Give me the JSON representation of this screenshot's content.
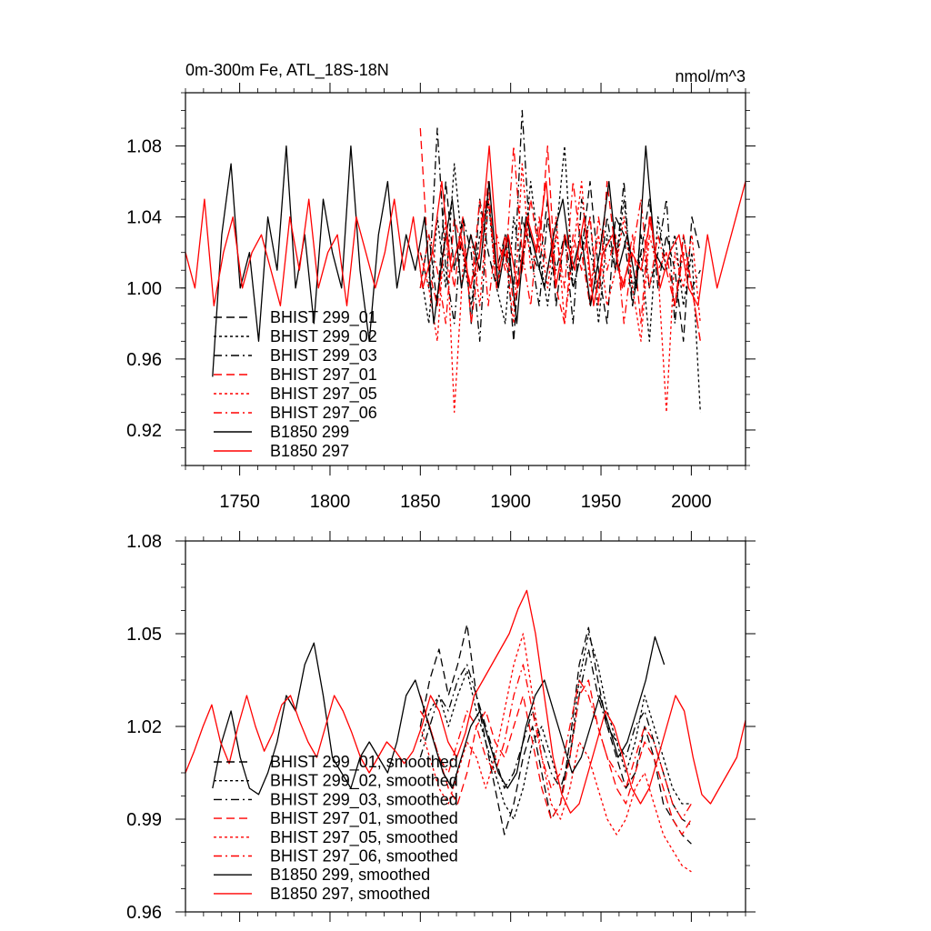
{
  "chart_data": [
    {
      "type": "line",
      "title": "0m-300m Fe, ATL_18S-18N",
      "units": "nmol/m^3",
      "xlabel": "",
      "ylabel": "",
      "xlim": [
        1720,
        2030
      ],
      "ylim": [
        0.9,
        1.11
      ],
      "xticks": [
        1750,
        1800,
        1850,
        1900,
        1950,
        2000
      ],
      "xtick_labels": [
        "1750",
        "1800",
        "1850",
        "1900",
        "1950",
        "2000"
      ],
      "yticks": [
        0.92,
        0.96,
        1.0,
        1.04,
        1.08
      ],
      "ytick_labels": [
        "0.92",
        "0.96",
        "1.00",
        "1.04",
        "1.08"
      ],
      "legend_position": "lower-left",
      "series": [
        {
          "name": "BHIST 299_01",
          "color": "#000000",
          "dash": "dash",
          "x_start": 1850,
          "x_end": 2005,
          "values": [
            1.0,
            1.03,
            0.99,
            1.06,
            1.01,
            1.04,
            0.98,
            1.05,
            1.02,
            1.0,
            1.03,
            0.97,
            1.04,
            1.02,
            1.01,
            1.05,
            0.99,
            1.03,
            1.0,
            1.02,
            1.06,
            1.01,
            0.98,
            1.04,
            1.03,
            0.99,
            1.02,
            1.05,
            1.0,
            1.03,
            1.01,
            0.97,
            1.04,
            1.02
          ]
        },
        {
          "name": "BHIST 299_02",
          "color": "#000000",
          "dash": "dot",
          "x_start": 1850,
          "x_end": 2005,
          "values": [
            1.01,
            0.98,
            1.04,
            1.0,
            1.07,
            1.02,
            0.99,
            1.03,
            1.05,
            1.0,
            0.98,
            1.04,
            1.01,
            1.06,
            1.02,
            0.99,
            1.03,
            1.08,
            1.0,
            1.02,
            1.04,
            0.98,
            1.03,
            1.01,
            1.05,
            1.0,
            1.02,
            0.97,
            1.04,
            1.01,
            1.03,
            0.99,
            1.02,
            0.93
          ]
        },
        {
          "name": "BHIST 299_03",
          "color": "#000000",
          "dash": "dashdot",
          "x_start": 1850,
          "x_end": 2005,
          "values": [
            1.02,
            1.0,
            1.09,
            1.01,
            0.98,
            1.04,
            1.02,
            0.97,
            1.05,
            1.01,
            1.03,
            1.0,
            1.1,
            1.02,
            0.99,
            1.04,
            1.01,
            1.03,
            0.98,
            1.05,
            1.02,
            1.0,
            1.04,
            1.01,
            1.06,
            0.99,
            1.03,
            1.0,
            1.02,
            1.05,
            0.98,
            1.03,
            1.0,
            1.01
          ]
        },
        {
          "name": "BHIST 297_01",
          "color": "#ff0000",
          "dash": "dash",
          "x_start": 1850,
          "x_end": 2005,
          "values": [
            1.09,
            1.01,
            0.99,
            1.03,
            1.0,
            1.04,
            0.98,
            1.02,
            1.06,
            1.0,
            1.03,
            0.99,
            1.01,
            1.05,
            1.02,
            1.08,
            1.0,
            0.98,
            1.03,
            1.01,
            1.04,
            0.99,
            1.06,
            1.02,
            1.0,
            1.03,
            0.98,
            1.04,
            1.01,
            1.02,
            0.99,
            1.03,
            1.0,
            0.97
          ]
        },
        {
          "name": "BHIST 297_05",
          "color": "#ff0000",
          "dash": "dot",
          "x_start": 1850,
          "x_end": 2005,
          "values": [
            1.02,
            1.0,
            0.97,
            1.04,
            0.93,
            1.01,
            1.03,
            0.99,
            1.05,
            1.0,
            1.02,
            0.98,
            1.07,
            1.01,
            1.03,
            1.0,
            1.04,
            0.98,
            1.02,
            1.06,
            1.0,
            1.03,
            0.99,
            1.01,
            1.04,
            1.0,
            0.97,
            1.03,
            1.01,
            0.93,
            1.02,
            1.0,
            1.03,
            0.98
          ]
        },
        {
          "name": "BHIST 297_06",
          "color": "#ff0000",
          "dash": "dashdot",
          "x_start": 1850,
          "x_end": 2005,
          "values": [
            1.0,
            1.03,
            1.01,
            0.98,
            1.04,
            1.02,
            1.0,
            1.05,
            0.99,
            1.03,
            1.01,
            1.08,
            1.02,
            0.99,
            1.04,
            1.01,
            1.03,
            1.0,
            1.06,
            1.02,
            0.99,
            1.04,
            1.01,
            1.03,
            0.98,
            1.02,
            1.05,
            1.0,
            1.03,
            1.01,
            0.99,
            1.02,
            1.0,
            0.97
          ]
        },
        {
          "name": "B1850 299",
          "color": "#000000",
          "dash": "solid",
          "x_start": 1735,
          "x_end": 1985,
          "values": [
            0.95,
            1.03,
            1.07,
            1.0,
            1.02,
            0.97,
            1.04,
            1.01,
            1.08,
            1.0,
            1.03,
            0.98,
            1.05,
            1.02,
            1.0,
            1.08,
            1.01,
            0.97,
            1.03,
            1.06,
            1.0,
            1.03,
            1.01,
            1.04,
            0.98,
            1.02,
            1.05,
            1.0,
            1.03,
            1.01,
            1.06,
            1.0,
            1.03,
            0.98,
            1.04,
            1.02,
            1.0,
            1.03,
            1.05,
            1.01,
            1.03,
            0.99,
            1.02,
            1.06,
            1.01,
            1.03,
            1.0,
            1.08,
            1.02,
            1.01
          ]
        },
        {
          "name": "B1850 297",
          "color": "#ff0000",
          "dash": "solid",
          "x_start": 1720,
          "x_end": 2030,
          "values": [
            1.02,
            1.0,
            1.05,
            0.99,
            1.02,
            1.04,
            1.0,
            1.02,
            1.03,
            1.01,
            0.99,
            1.04,
            1.01,
            1.05,
            1.0,
            1.02,
            1.03,
            0.99,
            1.04,
            1.02,
            1.0,
            1.02,
            1.05,
            1.01,
            1.04,
            1.0,
            1.02,
            1.06,
            1.01,
            1.03,
            1.0,
            1.02,
            1.08,
            1.01,
            1.03,
            1.0,
            1.04,
            1.02,
            1.06,
            1.0,
            1.03,
            1.01,
            1.04,
            0.99,
            1.02,
            1.03,
            1.0,
            1.02,
            1.01,
            1.04,
            1.0,
            1.02,
            1.03,
            1.0,
            0.99,
            1.03,
            1.0,
            1.02,
            1.04,
            1.06
          ]
        }
      ]
    },
    {
      "type": "line",
      "title": "",
      "xlabel": "",
      "ylabel": "",
      "xlim": [
        1720,
        2030
      ],
      "ylim": [
        0.96,
        1.08
      ],
      "xticks": [
        1750,
        1800,
        1850,
        1900,
        1950,
        2000
      ],
      "yticks": [
        0.96,
        0.99,
        1.02,
        1.05,
        1.08
      ],
      "ytick_labels": [
        "0.96",
        "0.99",
        "1.02",
        "1.05",
        "1.08"
      ],
      "legend_position": "lower-left",
      "series": [
        {
          "name": "BHIST 299_01, smoothed",
          "color": "#000000",
          "dash": "dash",
          "x_start": 1850,
          "x_end": 2000,
          "values": [
            1.02,
            1.035,
            1.045,
            1.03,
            1.04,
            1.053,
            1.03,
            1.015,
            1.0,
            0.985,
            0.995,
            1.01,
            1.02,
            1.005,
            0.99,
            0.995,
            1.015,
            1.04,
            1.052,
            1.035,
            1.02,
            1.01,
            1.0,
            1.005,
            1.02,
            1.01,
            0.995,
            0.99,
            0.985,
            0.982
          ]
        },
        {
          "name": "BHIST 299_02, smoothed",
          "color": "#000000",
          "dash": "dot",
          "x_start": 1850,
          "x_end": 2000,
          "values": [
            1.015,
            1.025,
            1.03,
            1.02,
            1.03,
            1.038,
            1.025,
            1.015,
            1.005,
            0.995,
            0.99,
            1.0,
            1.015,
            1.02,
            1.01,
            1.0,
            1.01,
            1.035,
            1.05,
            1.04,
            1.025,
            1.015,
            1.005,
            1.015,
            1.03,
            1.02,
            1.01,
            1.0,
            0.995,
            0.995
          ]
        },
        {
          "name": "BHIST 299_03, smoothed",
          "color": "#000000",
          "dash": "dashdot",
          "x_start": 1850,
          "x_end": 2000,
          "values": [
            1.01,
            1.02,
            1.03,
            1.025,
            1.035,
            1.04,
            1.03,
            1.02,
            1.01,
            1.0,
            1.005,
            1.015,
            1.025,
            1.015,
            1.005,
            1.0,
            1.01,
            1.03,
            1.045,
            1.03,
            1.02,
            1.015,
            1.01,
            1.02,
            1.025,
            1.015,
            1.005,
            0.995,
            0.99,
            0.988
          ]
        },
        {
          "name": "BHIST 297_01, smoothed",
          "color": "#ff0000",
          "dash": "dash",
          "x_start": 1850,
          "x_end": 2000,
          "values": [
            1.03,
            1.02,
            1.01,
            1.0,
            0.995,
            1.005,
            1.02,
            1.025,
            1.015,
            1.01,
            1.02,
            1.03,
            1.015,
            1.0,
            0.99,
            0.995,
            1.01,
            1.03,
            1.035,
            1.02,
            1.01,
            1.0,
            0.995,
            1.005,
            1.015,
            1.01,
            1.0,
            0.99,
            0.985,
            0.99
          ]
        },
        {
          "name": "BHIST 297_05, smoothed",
          "color": "#ff0000",
          "dash": "dot",
          "x_start": 1850,
          "x_end": 2000,
          "values": [
            1.02,
            1.01,
            1.0,
            0.995,
            1.005,
            1.015,
            1.01,
            1.0,
            1.01,
            1.025,
            1.04,
            1.05,
            1.03,
            1.01,
            0.995,
            0.99,
            1.0,
            1.015,
            1.01,
            1.0,
            0.99,
            0.985,
            0.99,
            1.0,
            1.005,
            0.995,
            0.985,
            0.98,
            0.975,
            0.973
          ]
        },
        {
          "name": "BHIST 297_06, smoothed",
          "color": "#ff0000",
          "dash": "dashdot",
          "x_start": 1850,
          "x_end": 2000,
          "values": [
            1.025,
            1.02,
            1.01,
            1.005,
            1.015,
            1.025,
            1.02,
            1.01,
            1.005,
            1.015,
            1.03,
            1.04,
            1.025,
            1.01,
            1.0,
            1.005,
            1.02,
            1.035,
            1.03,
            1.02,
            1.01,
            1.005,
            1.0,
            1.01,
            1.02,
            1.015,
            1.005,
            0.995,
            0.99,
            0.995
          ]
        },
        {
          "name": "B1850 299, smoothed",
          "color": "#000000",
          "dash": "solid",
          "x_start": 1735,
          "x_end": 1985,
          "values": [
            1.0,
            1.015,
            1.025,
            1.01,
            1.0,
            0.998,
            1.005,
            1.015,
            1.03,
            1.025,
            1.04,
            1.047,
            1.03,
            1.01,
            1.005,
            1.0,
            1.01,
            1.015,
            1.01,
            1.005,
            1.015,
            1.03,
            1.035,
            1.025,
            1.015,
            1.005,
            1.0,
            1.01,
            1.02,
            1.025,
            1.015,
            1.005,
            1.0,
            1.005,
            1.02,
            1.03,
            1.035,
            1.025,
            1.015,
            1.005,
            1.01,
            1.02,
            1.03,
            1.02,
            1.01,
            1.015,
            1.025,
            1.035,
            1.049,
            1.04
          ]
        },
        {
          "name": "B1850 297, smoothed",
          "color": "#ff0000",
          "dash": "solid",
          "x_start": 1720,
          "x_end": 2030,
          "values": [
            1.005,
            1.012,
            1.02,
            1.027,
            1.015,
            1.008,
            1.02,
            1.03,
            1.02,
            1.012,
            1.018,
            1.027,
            1.03,
            1.022,
            1.015,
            1.01,
            1.02,
            1.03,
            1.025,
            1.018,
            1.01,
            1.005,
            1.01,
            1.015,
            1.012,
            1.008,
            1.012,
            1.02,
            1.03,
            1.025,
            1.015,
            1.01,
            1.018,
            1.03,
            1.035,
            1.04,
            1.045,
            1.05,
            1.058,
            1.064,
            1.05,
            1.03,
            1.01,
            0.998,
            0.992,
            0.995,
            1.005,
            1.015,
            1.025,
            1.02,
            1.01,
            1.0,
            0.995,
            1.0,
            1.01,
            1.02,
            1.03,
            1.025,
            1.01,
            0.998,
            0.995,
            1.0,
            1.005,
            1.01,
            1.022
          ]
        }
      ]
    }
  ]
}
